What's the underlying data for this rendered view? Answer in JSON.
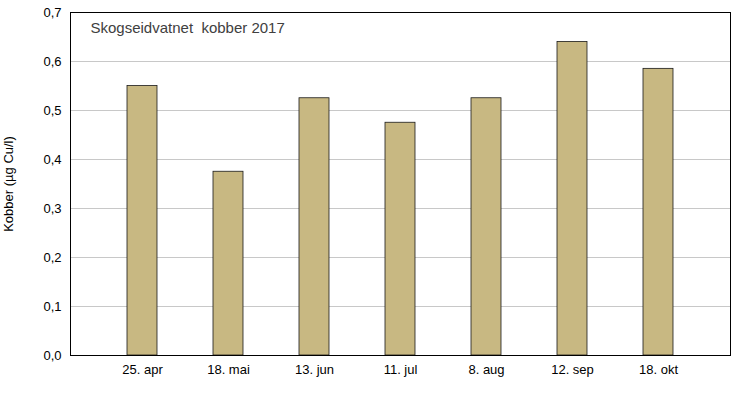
{
  "chart_data": {
    "type": "bar",
    "title": "Skogseidvatnet  kobber 2017",
    "ylabel": "Kobber (µg Cu/l)",
    "categories": [
      "25. apr",
      "18. mai",
      "13. jun",
      "11. jul",
      "8. aug",
      "12. sep",
      "18. okt"
    ],
    "values": [
      0.55,
      0.375,
      0.525,
      0.475,
      0.525,
      0.64,
      0.585
    ],
    "color": "#C8B882",
    "ylim": [
      0.0,
      0.7
    ],
    "yticks": [
      {
        "value": 0.0,
        "label": "0,0"
      },
      {
        "value": 0.1,
        "label": "0,1"
      },
      {
        "value": 0.2,
        "label": "0,2"
      },
      {
        "value": 0.3,
        "label": "0,3"
      },
      {
        "value": 0.4,
        "label": "0,4"
      },
      {
        "value": 0.5,
        "label": "0,5"
      },
      {
        "value": 0.6,
        "label": "0,6"
      },
      {
        "value": 0.7,
        "label": "0,7"
      }
    ],
    "grid": true
  }
}
